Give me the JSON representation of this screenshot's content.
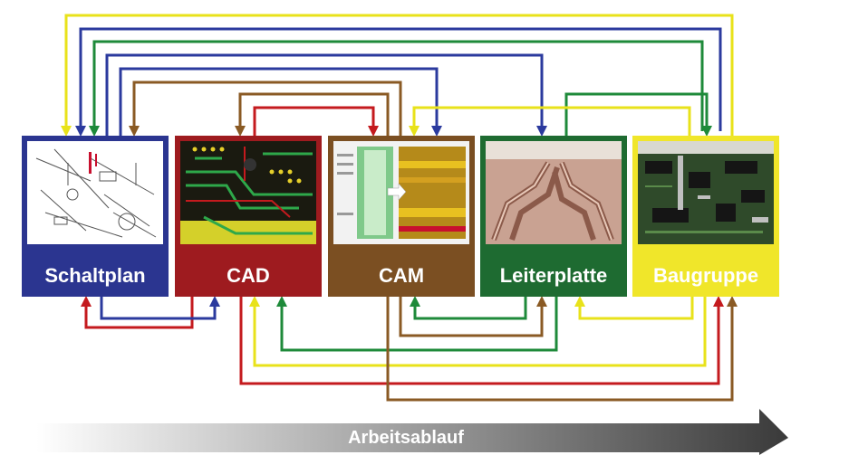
{
  "stages": [
    {
      "id": "schaltplan",
      "label": "Schaltplan",
      "color": "#2b3590",
      "text_color": "#ffffff",
      "image": "schematic drawing"
    },
    {
      "id": "cad",
      "label": "CAD",
      "color": "#9e1b1f",
      "text_color": "#ffffff",
      "image": "PCB layout screenshot"
    },
    {
      "id": "cam",
      "label": "CAM",
      "color": "#7b4f22",
      "text_color": "#ffffff",
      "image": "CAM software screenshot"
    },
    {
      "id": "leiterplatte",
      "label": "Leiterplatte",
      "color": "#1e6b31",
      "text_color": "#ffffff",
      "image": "bare circuit board photo"
    },
    {
      "id": "baugruppe",
      "label": "Baugruppe",
      "color": "#f0e62a",
      "text_color": "#ffffff",
      "image": "assembled circuit board photo"
    }
  ],
  "connector_colors": {
    "blue": "#2b3a9e",
    "green": "#1e8a3a",
    "yellow": "#e8e21a",
    "brown": "#8a5a24",
    "red": "#c41a1e"
  },
  "flow": {
    "label": "Arbeitsablauf",
    "color_start": "#ffffff",
    "color_end": "#3a3a3a"
  }
}
